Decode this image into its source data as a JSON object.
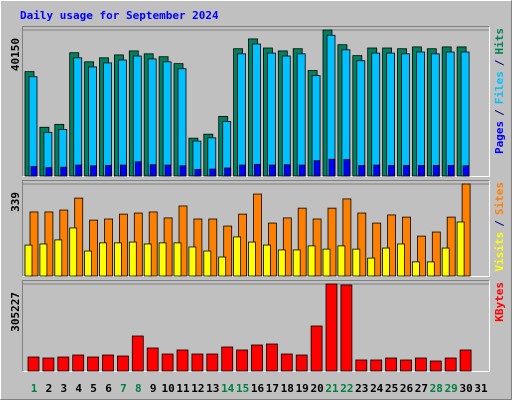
{
  "chart_data": [
    {
      "type": "bar",
      "title": "Daily usage for September 2024",
      "title_color": "#0000ff",
      "categories": [
        "1",
        "2",
        "3",
        "4",
        "5",
        "6",
        "7",
        "8",
        "9",
        "10",
        "11",
        "12",
        "13",
        "14",
        "15",
        "16",
        "17",
        "18",
        "19",
        "20",
        "21",
        "22",
        "23",
        "24",
        "25",
        "26",
        "27",
        "28",
        "29",
        "30",
        "31"
      ],
      "category_colors": [
        "#008040",
        "#000000",
        "#000000",
        "#000000",
        "#000000",
        "#000000",
        "#008040",
        "#008040",
        "#000000",
        "#000000",
        "#000000",
        "#000000",
        "#000000",
        "#008040",
        "#008040",
        "#000000",
        "#000000",
        "#000000",
        "#000000",
        "#000000",
        "#008040",
        "#008040",
        "#000000",
        "#000000",
        "#000000",
        "#000000",
        "#000000",
        "#008040",
        "#008040",
        "#000000",
        "#000000"
      ],
      "legend_separator": "/",
      "series": [
        {
          "name": "Hits",
          "color": "#00805c",
          "values": [
            28700,
            13400,
            14200,
            33900,
            31400,
            32500,
            33300,
            34400,
            33600,
            32800,
            30900,
            10400,
            11500,
            16400,
            35000,
            37700,
            35200,
            34400,
            35000,
            29000,
            40150,
            36100,
            33100,
            35200,
            35200,
            35000,
            35500,
            35000,
            35500,
            35500,
            null
          ]
        },
        {
          "name": "Files",
          "color": "#00c0ff",
          "values": [
            27300,
            12000,
            12800,
            32500,
            30000,
            31100,
            31900,
            33000,
            32200,
            31400,
            29500,
            9600,
            10500,
            15000,
            33600,
            36300,
            33800,
            33000,
            33600,
            27600,
            38700,
            34700,
            31700,
            33800,
            33800,
            33600,
            34100,
            33600,
            34100,
            34100,
            null
          ]
        },
        {
          "name": "Pages",
          "color": "#0000ff",
          "values": [
            2600,
            2300,
            2400,
            3000,
            2800,
            2900,
            3000,
            3900,
            3100,
            3000,
            2800,
            1800,
            1900,
            2200,
            3000,
            3200,
            3000,
            3100,
            3000,
            4200,
            4600,
            4500,
            2900,
            3000,
            2900,
            2900,
            2900,
            2900,
            2900,
            2800,
            null
          ]
        }
      ],
      "ylim": [
        0,
        40150
      ],
      "yticks": [
        40150
      ]
    },
    {
      "type": "bar",
      "series": [
        {
          "name": "Sites",
          "color": "#ff8000",
          "values": [
            236,
            236,
            243,
            287,
            206,
            210,
            228,
            232,
            236,
            214,
            258,
            210,
            210,
            184,
            228,
            302,
            195,
            214,
            250,
            210,
            250,
            284,
            232,
            195,
            225,
            217,
            147,
            162,
            217,
            339,
            null
          ]
        },
        {
          "name": "Visits",
          "color": "#ffff00",
          "values": [
            114,
            118,
            133,
            177,
            92,
            122,
            122,
            125,
            118,
            122,
            122,
            107,
            92,
            70,
            144,
            125,
            114,
            96,
            96,
            111,
            99,
            111,
            99,
            66,
            103,
            118,
            52,
            52,
            103,
            199,
            null
          ]
        }
      ],
      "ylim": [
        0,
        339
      ],
      "yticks": [
        339
      ]
    },
    {
      "type": "bar",
      "series": [
        {
          "name": "KBytes",
          "color": "#ff0000",
          "values": [
            49100,
            45600,
            49100,
            56100,
            49100,
            56100,
            52600,
            122800,
            80700,
            59600,
            73700,
            59600,
            59600,
            84200,
            73700,
            91200,
            94700,
            59600,
            56100,
            157900,
            305227,
            301700,
            38600,
            38600,
            45600,
            38600,
            45600,
            35100,
            45600,
            73700,
            null
          ]
        }
      ],
      "ylim": [
        0,
        305227
      ],
      "yticks": [
        305227
      ]
    }
  ]
}
